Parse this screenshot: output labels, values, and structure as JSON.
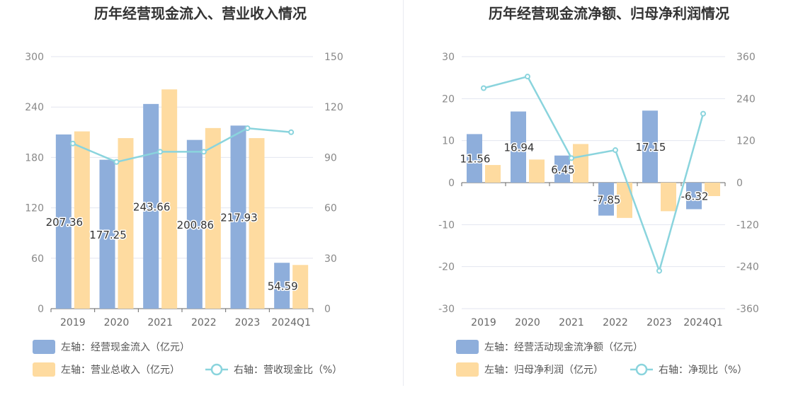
{
  "colors": {
    "bar_a": "#8eaedb",
    "bar_b": "#fedba0",
    "line": "#8ad4dd",
    "grid": "#e3e6ef",
    "axis": "#666666"
  },
  "chart_data": [
    {
      "type": "bar",
      "title": "历年经营现金流入、营业收入情况",
      "categories": [
        "2019",
        "2020",
        "2021",
        "2022",
        "2023",
        "2024Q1"
      ],
      "left_ticks": [
        "0",
        "60",
        "120",
        "180",
        "240",
        "300"
      ],
      "right_ticks": [
        "0",
        "30",
        "60",
        "90",
        "120",
        "150"
      ],
      "ylim_left": [
        0,
        300
      ],
      "ylim_right": [
        0,
        150
      ],
      "grid": true,
      "legend_position": "bottom-left",
      "series": [
        {
          "name": "左轴：经营现金流入（亿元）",
          "type": "bar",
          "axis": "left",
          "values": [
            207.36,
            177.25,
            243.66,
            200.86,
            217.93,
            54.59
          ],
          "show_labels": true
        },
        {
          "name": "左轴：营业总收入（亿元）",
          "type": "bar",
          "axis": "left",
          "values": [
            211,
            203,
            261,
            215,
            203,
            52
          ],
          "show_labels": false
        },
        {
          "name": "右轴：营收现金比（%）",
          "type": "line",
          "axis": "right",
          "values": [
            98.3,
            87.3,
            93.4,
            93.4,
            107.4,
            105.0
          ],
          "show_labels": false
        }
      ]
    },
    {
      "type": "bar",
      "title": "历年经营现金流净额、归母净利润情况",
      "categories": [
        "2019",
        "2020",
        "2021",
        "2022",
        "2023",
        "2024Q1"
      ],
      "left_ticks": [
        "-30",
        "-20",
        "-10",
        "0",
        "10",
        "20",
        "30"
      ],
      "right_ticks": [
        "-360",
        "-240",
        "-120",
        "0",
        "120",
        "240",
        "360"
      ],
      "ylim_left": [
        -30,
        30
      ],
      "ylim_right": [
        -360,
        360
      ],
      "grid": true,
      "legend_position": "bottom-left",
      "series": [
        {
          "name": "左轴：经营活动现金流净额（亿元）",
          "type": "bar",
          "axis": "left",
          "values": [
            11.56,
            16.94,
            6.45,
            -7.85,
            17.15,
            -6.32
          ],
          "show_labels": true
        },
        {
          "name": "左轴：归母净利润（亿元）",
          "type": "bar",
          "axis": "left",
          "values": [
            4.2,
            5.5,
            9.2,
            -8.4,
            -6.8,
            -3.2
          ],
          "show_labels": false
        },
        {
          "name": "右轴：净现比（%）",
          "type": "line",
          "axis": "right",
          "values": [
            270,
            303,
            70,
            93,
            -252,
            197
          ],
          "show_labels": false
        }
      ]
    }
  ]
}
